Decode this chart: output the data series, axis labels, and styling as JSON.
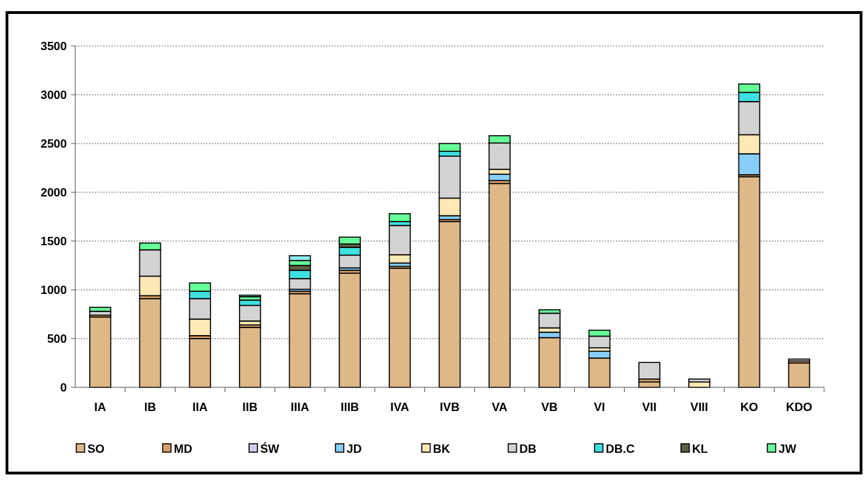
{
  "chart_data": {
    "type": "bar",
    "stacked": true,
    "categories": [
      "IA",
      "IB",
      "IIA",
      "IIB",
      "IIIA",
      "IIIB",
      "IVA",
      "IVB",
      "VA",
      "VB",
      "VI",
      "VII",
      "VIII",
      "KO",
      "KDO"
    ],
    "series": [
      {
        "name": "SO",
        "color": "#deb887",
        "values": [
          720,
          910,
          500,
          615,
          960,
          1170,
          1220,
          1700,
          2090,
          510,
          300,
          55,
          0,
          2160,
          250
        ]
      },
      {
        "name": "MD",
        "color": "#d9a066",
        "values": [
          20,
          30,
          30,
          25,
          25,
          30,
          20,
          20,
          30,
          0,
          0,
          30,
          null,
          20,
          20
        ]
      },
      {
        "name": "ŚW",
        "color": "#d0ccf5",
        "values": [
          0,
          0,
          0,
          0,
          0,
          0,
          0,
          0,
          0,
          0,
          0,
          0,
          0,
          0,
          0
        ]
      },
      {
        "name": "JD",
        "color": "#87cefa",
        "values": [
          0,
          0,
          0,
          0,
          20,
          25,
          35,
          40,
          65,
          55,
          70,
          0,
          0,
          215,
          0
        ]
      },
      {
        "name": "BK",
        "color": "#fde9b5",
        "values": [
          0,
          200,
          170,
          40,
          0,
          0,
          85,
          180,
          50,
          45,
          35,
          0,
          55,
          195,
          0
        ]
      },
      {
        "name": "DB",
        "color": "#d3d3d3",
        "values": [
          40,
          270,
          210,
          160,
          110,
          130,
          300,
          430,
          270,
          150,
          120,
          170,
          30,
          340,
          20
        ]
      },
      {
        "name": "DB.C",
        "color": "#40e0e0",
        "values": [
          0,
          0,
          75,
          55,
          85,
          80,
          40,
          50,
          0,
          0,
          0,
          0,
          0,
          95,
          0
        ]
      },
      {
        "name": "KL",
        "color": "#5f5f46",
        "values": [
          0,
          0,
          0,
          0,
          50,
          35,
          0,
          0,
          0,
          0,
          0,
          0,
          0,
          0,
          0
        ]
      },
      {
        "name": "JW",
        "color": "#66ff99",
        "values": [
          40,
          70,
          85,
          35,
          50,
          70,
          80,
          80,
          75,
          35,
          60,
          0,
          0,
          85,
          0
        ]
      },
      {
        "color": "#8fe8f0",
        "values": [
          0,
          0,
          0,
          15,
          50,
          0,
          0,
          0,
          0,
          0,
          0,
          0,
          0,
          0,
          0
        ]
      }
    ],
    "ylim": [
      0,
      3500
    ],
    "yticks": [
      0,
      500,
      1000,
      1500,
      2000,
      2500,
      3000,
      3500
    ],
    "grid": "y",
    "legend": "bottom"
  }
}
